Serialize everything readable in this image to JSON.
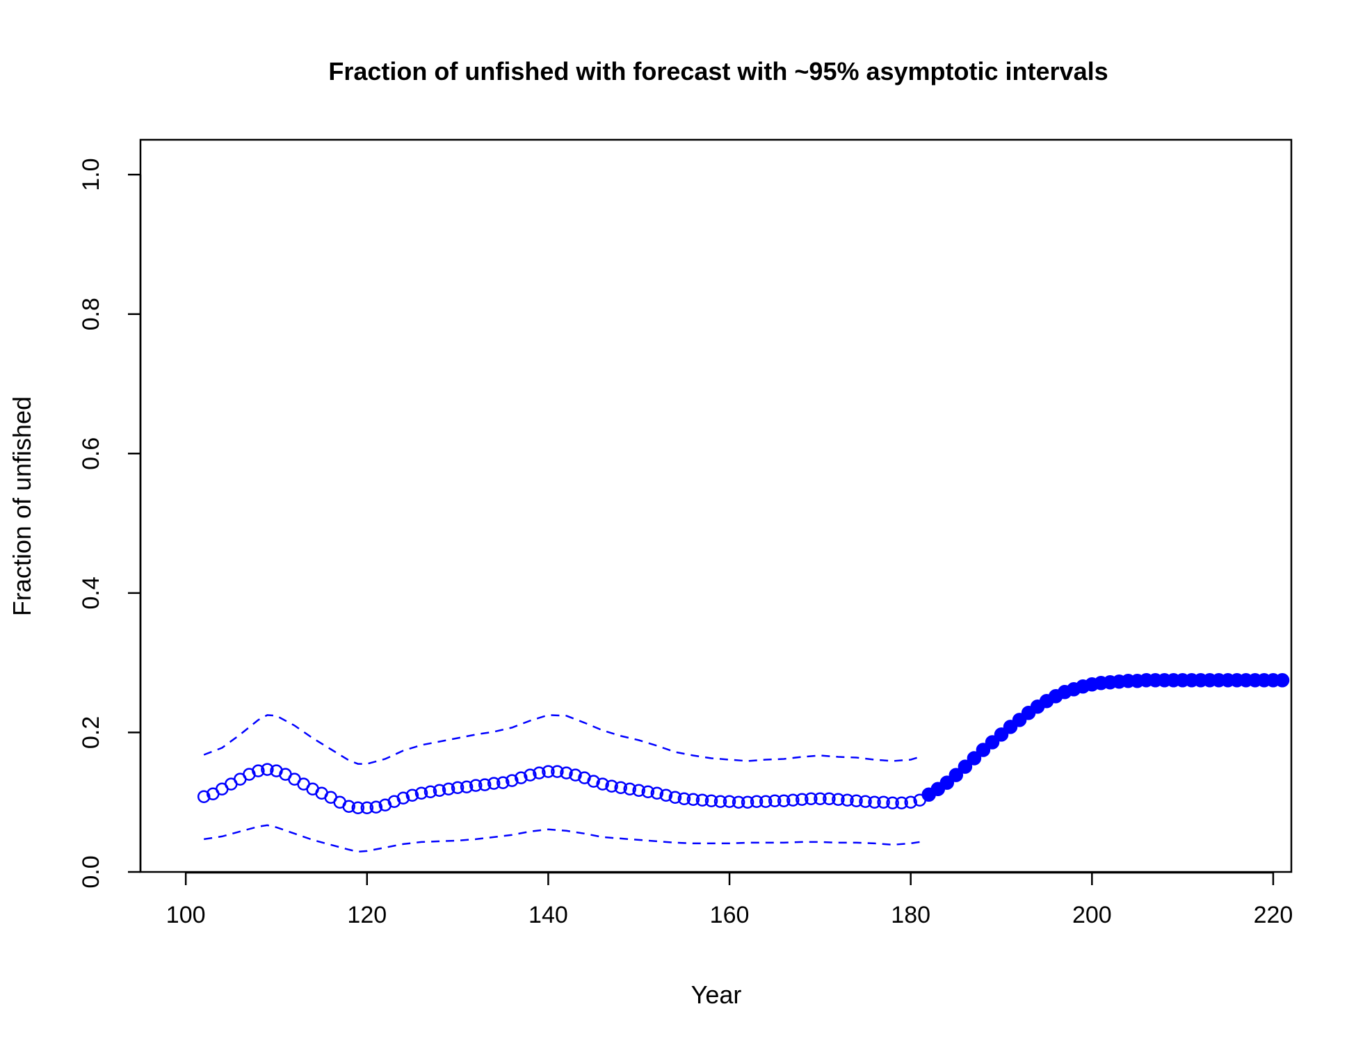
{
  "chart_data": {
    "type": "line",
    "title": "Fraction of unfished with forecast with ~95% asymptotic intervals",
    "xlabel": "Year",
    "ylabel": "Fraction of unfished",
    "xlim": [
      95,
      222
    ],
    "ylim": [
      0,
      1.05
    ],
    "x_ticks": [
      100,
      120,
      140,
      160,
      180,
      200,
      220
    ],
    "y_ticks": [
      0.0,
      0.2,
      0.4,
      0.6,
      0.8,
      1.0
    ],
    "x_tick_labels": [
      "100",
      "120",
      "140",
      "160",
      "180",
      "200",
      "220"
    ],
    "y_tick_labels": [
      "0.0",
      "0.2",
      "0.4",
      "0.6",
      "0.8",
      "1.0"
    ],
    "grid": false,
    "legend": "none",
    "color": "#0000ff",
    "series": [
      {
        "role": "estimate",
        "marker": "open-circle",
        "x": [
          102,
          103,
          104,
          105,
          106,
          107,
          108,
          109,
          110,
          111,
          112,
          113,
          114,
          115,
          116,
          117,
          118,
          119,
          120,
          121,
          122,
          123,
          124,
          125,
          126,
          127,
          128,
          129,
          130,
          131,
          132,
          133,
          134,
          135,
          136,
          137,
          138,
          139,
          140,
          141,
          142,
          143,
          144,
          145,
          146,
          147,
          148,
          149,
          150,
          151,
          152,
          153,
          154,
          155,
          156,
          157,
          158,
          159,
          160,
          161,
          162,
          163,
          164,
          165,
          166,
          167,
          168,
          169,
          170,
          171,
          172,
          173,
          174,
          175,
          176,
          177,
          178,
          179,
          180,
          181
        ],
        "y": [
          0.108,
          0.112,
          0.119,
          0.126,
          0.133,
          0.14,
          0.145,
          0.147,
          0.145,
          0.14,
          0.133,
          0.126,
          0.119,
          0.113,
          0.107,
          0.1,
          0.094,
          0.092,
          0.092,
          0.093,
          0.096,
          0.101,
          0.106,
          0.11,
          0.113,
          0.115,
          0.117,
          0.119,
          0.121,
          0.122,
          0.124,
          0.125,
          0.127,
          0.128,
          0.131,
          0.135,
          0.139,
          0.142,
          0.144,
          0.144,
          0.142,
          0.139,
          0.135,
          0.13,
          0.126,
          0.123,
          0.121,
          0.119,
          0.117,
          0.115,
          0.113,
          0.11,
          0.107,
          0.105,
          0.104,
          0.103,
          0.102,
          0.101,
          0.101,
          0.1,
          0.1,
          0.101,
          0.101,
          0.102,
          0.102,
          0.103,
          0.104,
          0.105,
          0.105,
          0.105,
          0.104,
          0.103,
          0.102,
          0.101,
          0.1,
          0.1,
          0.099,
          0.099,
          0.1,
          0.103
        ]
      },
      {
        "role": "forecast",
        "marker": "filled-circle",
        "x": [
          182,
          183,
          184,
          185,
          186,
          187,
          188,
          189,
          190,
          191,
          192,
          193,
          194,
          195,
          196,
          197,
          198,
          199,
          200,
          201,
          202,
          203,
          204,
          205,
          206,
          207,
          208,
          209,
          210,
          211,
          212,
          213,
          214,
          215,
          216,
          217,
          218,
          219,
          220,
          221
        ],
        "y": [
          0.111,
          0.119,
          0.128,
          0.139,
          0.151,
          0.163,
          0.175,
          0.186,
          0.197,
          0.208,
          0.218,
          0.228,
          0.237,
          0.245,
          0.252,
          0.258,
          0.262,
          0.266,
          0.269,
          0.271,
          0.272,
          0.273,
          0.274,
          0.274,
          0.275,
          0.275,
          0.275,
          0.275,
          0.275,
          0.275,
          0.275,
          0.275,
          0.275,
          0.275,
          0.275,
          0.275,
          0.275,
          0.275,
          0.275,
          0.275
        ]
      },
      {
        "role": "upper-95",
        "linestyle": "dashed",
        "x": [
          102,
          104,
          106,
          108,
          109,
          110,
          112,
          114,
          116,
          118,
          119,
          120,
          122,
          124,
          126,
          128,
          130,
          132,
          134,
          136,
          138,
          140,
          142,
          144,
          146,
          148,
          150,
          152,
          154,
          156,
          158,
          160,
          162,
          164,
          166,
          168,
          170,
          172,
          174,
          176,
          178,
          180,
          181
        ],
        "y": [
          0.168,
          0.178,
          0.197,
          0.218,
          0.225,
          0.224,
          0.21,
          0.192,
          0.176,
          0.16,
          0.155,
          0.155,
          0.162,
          0.174,
          0.182,
          0.187,
          0.192,
          0.197,
          0.201,
          0.207,
          0.217,
          0.225,
          0.224,
          0.214,
          0.203,
          0.195,
          0.189,
          0.181,
          0.172,
          0.167,
          0.163,
          0.161,
          0.159,
          0.161,
          0.162,
          0.165,
          0.167,
          0.165,
          0.164,
          0.161,
          0.159,
          0.161,
          0.165
        ]
      },
      {
        "role": "lower-95",
        "linestyle": "dashed",
        "x": [
          102,
          104,
          106,
          108,
          109,
          110,
          112,
          114,
          116,
          118,
          119,
          120,
          122,
          124,
          126,
          128,
          130,
          132,
          134,
          136,
          138,
          140,
          142,
          144,
          146,
          148,
          150,
          152,
          154,
          156,
          158,
          160,
          162,
          164,
          166,
          168,
          170,
          172,
          174,
          176,
          178,
          180,
          181
        ],
        "y": [
          0.047,
          0.051,
          0.058,
          0.065,
          0.067,
          0.064,
          0.055,
          0.046,
          0.039,
          0.032,
          0.029,
          0.03,
          0.035,
          0.04,
          0.043,
          0.044,
          0.045,
          0.047,
          0.05,
          0.053,
          0.058,
          0.061,
          0.059,
          0.055,
          0.05,
          0.048,
          0.046,
          0.044,
          0.042,
          0.041,
          0.041,
          0.041,
          0.042,
          0.042,
          0.042,
          0.043,
          0.043,
          0.042,
          0.042,
          0.041,
          0.039,
          0.041,
          0.043
        ]
      }
    ]
  }
}
